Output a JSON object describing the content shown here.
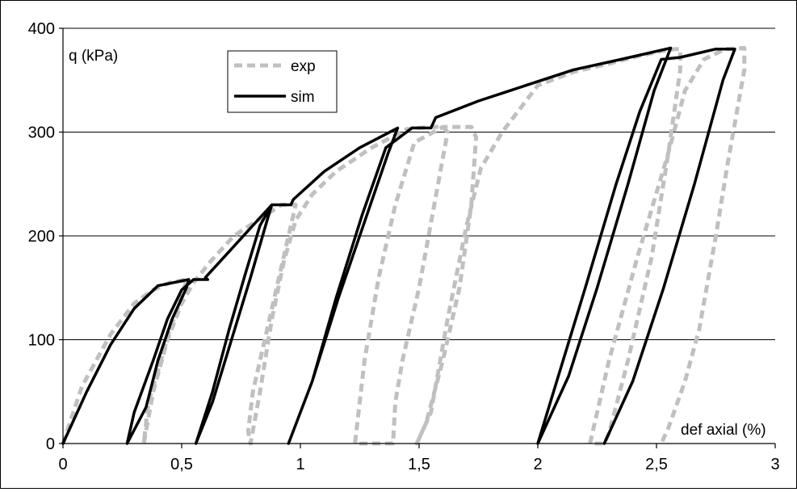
{
  "chart_data": {
    "type": "line",
    "title": "",
    "xlabel": "def axial (%)",
    "ylabel": "q (kPa)",
    "xlim": [
      0,
      3
    ],
    "ylim": [
      0,
      400
    ],
    "grid": "horizontal",
    "legend_position": "top-left-inside",
    "x_tick_labels": [
      "0",
      "0,5",
      "1",
      "1,5",
      "2",
      "2,5",
      "3"
    ],
    "y_tick_labels": [
      "0",
      "100",
      "200",
      "300",
      "400"
    ],
    "series": [
      {
        "name": "exp",
        "style": "dashed",
        "color": "#c0c0c0",
        "points": [
          [
            0.0,
            0
          ],
          [
            0.08,
            55
          ],
          [
            0.2,
            105
          ],
          [
            0.3,
            135
          ],
          [
            0.38,
            148
          ],
          [
            0.45,
            155
          ],
          [
            0.52,
            158
          ],
          [
            0.5,
            140
          ],
          [
            0.45,
            110
          ],
          [
            0.4,
            70
          ],
          [
            0.36,
            40
          ],
          [
            0.34,
            0
          ],
          [
            0.38,
            50
          ],
          [
            0.44,
            100
          ],
          [
            0.5,
            135
          ],
          [
            0.55,
            155
          ],
          [
            0.62,
            175
          ],
          [
            0.72,
            200
          ],
          [
            0.82,
            215
          ],
          [
            0.92,
            230
          ],
          [
            0.98,
            230
          ],
          [
            0.95,
            200
          ],
          [
            0.9,
            150
          ],
          [
            0.85,
            100
          ],
          [
            0.8,
            50
          ],
          [
            0.78,
            12
          ],
          [
            0.79,
            0
          ],
          [
            0.83,
            50
          ],
          [
            0.88,
            120
          ],
          [
            0.93,
            175
          ],
          [
            0.98,
            215
          ],
          [
            1.05,
            240
          ],
          [
            1.15,
            262
          ],
          [
            1.3,
            285
          ],
          [
            1.45,
            303
          ],
          [
            1.55,
            305
          ],
          [
            1.6,
            305
          ],
          [
            1.62,
            300
          ],
          [
            1.58,
            250
          ],
          [
            1.5,
            150
          ],
          [
            1.43,
            80
          ],
          [
            1.4,
            40
          ],
          [
            1.39,
            0
          ],
          [
            1.23,
            0
          ],
          [
            1.27,
            80
          ],
          [
            1.33,
            160
          ],
          [
            1.4,
            230
          ],
          [
            1.48,
            290
          ],
          [
            1.6,
            305
          ],
          [
            1.72,
            305
          ],
          [
            1.74,
            295
          ],
          [
            1.72,
            230
          ],
          [
            1.67,
            150
          ],
          [
            1.6,
            80
          ],
          [
            1.53,
            20
          ],
          [
            1.49,
            0
          ],
          [
            1.55,
            30
          ],
          [
            1.62,
            120
          ],
          [
            1.7,
            210
          ],
          [
            1.76,
            265
          ],
          [
            1.85,
            300
          ],
          [
            2.0,
            345
          ],
          [
            2.15,
            358
          ],
          [
            2.3,
            366
          ],
          [
            2.42,
            373
          ],
          [
            2.52,
            378
          ],
          [
            2.58,
            380
          ],
          [
            2.6,
            380
          ],
          [
            2.6,
            360
          ],
          [
            2.55,
            280
          ],
          [
            2.48,
            180
          ],
          [
            2.38,
            80
          ],
          [
            2.3,
            10
          ],
          [
            2.28,
            0
          ],
          [
            2.22,
            0
          ],
          [
            2.3,
            80
          ],
          [
            2.42,
            180
          ],
          [
            2.55,
            280
          ],
          [
            2.62,
            340
          ],
          [
            2.7,
            370
          ],
          [
            2.79,
            380
          ],
          [
            2.87,
            381
          ],
          [
            2.87,
            360
          ],
          [
            2.8,
            270
          ],
          [
            2.75,
            200
          ],
          [
            2.68,
            110
          ],
          [
            2.62,
            60
          ],
          [
            2.55,
            15
          ],
          [
            2.52,
            0
          ]
        ]
      },
      {
        "name": "sim",
        "style": "solid",
        "color": "#000000",
        "points": [
          [
            0.0,
            0
          ],
          [
            0.1,
            50
          ],
          [
            0.2,
            95
          ],
          [
            0.3,
            130
          ],
          [
            0.4,
            152
          ],
          [
            0.53,
            158
          ],
          [
            0.52,
            150
          ],
          [
            0.46,
            120
          ],
          [
            0.4,
            80
          ],
          [
            0.35,
            35
          ],
          [
            0.27,
            0
          ],
          [
            0.3,
            30
          ],
          [
            0.38,
            80
          ],
          [
            0.44,
            120
          ],
          [
            0.5,
            148
          ],
          [
            0.55,
            158
          ],
          [
            0.61,
            158
          ],
          [
            0.6,
            160
          ],
          [
            0.7,
            185
          ],
          [
            0.8,
            210
          ],
          [
            0.88,
            230
          ],
          [
            0.86,
            215
          ],
          [
            0.79,
            160
          ],
          [
            0.71,
            100
          ],
          [
            0.63,
            40
          ],
          [
            0.56,
            0
          ],
          [
            0.63,
            50
          ],
          [
            0.7,
            110
          ],
          [
            0.77,
            165
          ],
          [
            0.83,
            210
          ],
          [
            0.88,
            230
          ],
          [
            0.96,
            230
          ],
          [
            0.97,
            235
          ],
          [
            1.1,
            262
          ],
          [
            1.25,
            285
          ],
          [
            1.41,
            304
          ],
          [
            1.37,
            280
          ],
          [
            1.28,
            220
          ],
          [
            1.16,
            140
          ],
          [
            1.05,
            60
          ],
          [
            0.95,
            0
          ],
          [
            1.05,
            60
          ],
          [
            1.15,
            140
          ],
          [
            1.26,
            220
          ],
          [
            1.36,
            285
          ],
          [
            1.47,
            304
          ],
          [
            1.55,
            304
          ],
          [
            1.57,
            314
          ],
          [
            1.75,
            330
          ],
          [
            1.95,
            345
          ],
          [
            2.15,
            360
          ],
          [
            2.35,
            370
          ],
          [
            2.56,
            381
          ],
          [
            2.49,
            340
          ],
          [
            2.38,
            250
          ],
          [
            2.25,
            150
          ],
          [
            2.13,
            65
          ],
          [
            2.0,
            0
          ],
          [
            2.08,
            60
          ],
          [
            2.2,
            150
          ],
          [
            2.33,
            250
          ],
          [
            2.43,
            320
          ],
          [
            2.52,
            370
          ],
          [
            2.6,
            372
          ],
          [
            2.75,
            380
          ],
          [
            2.83,
            380
          ],
          [
            2.78,
            350
          ],
          [
            2.66,
            250
          ],
          [
            2.53,
            150
          ],
          [
            2.4,
            60
          ],
          [
            2.28,
            0
          ]
        ]
      }
    ]
  }
}
